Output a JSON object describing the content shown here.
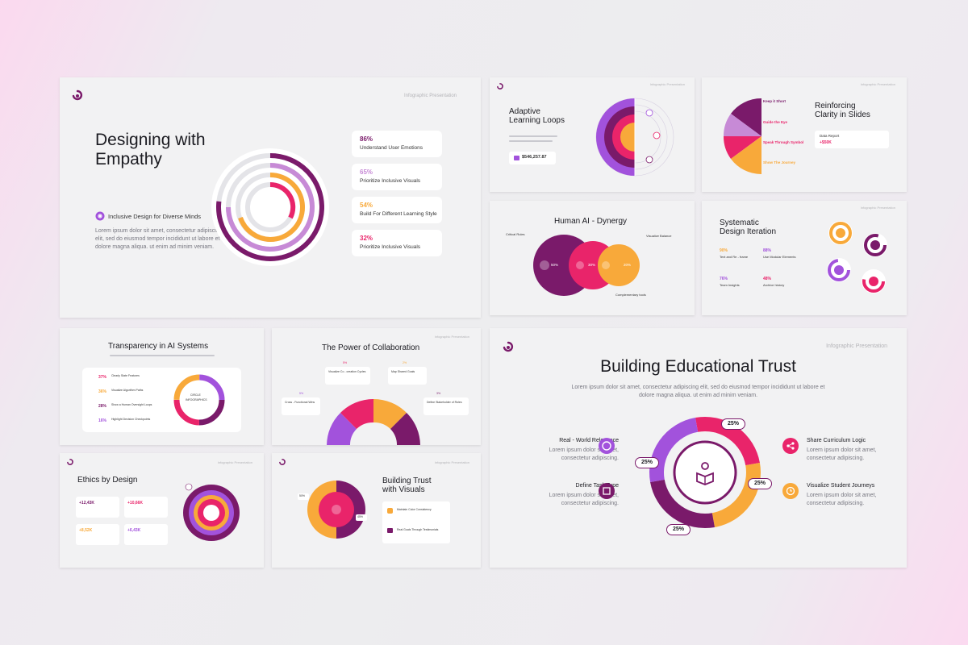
{
  "colors": {
    "purple": "#7a1a6a",
    "violet": "#a252dc",
    "pink": "#e9246a",
    "orange": "#f8a93a",
    "lavender": "#c78ad6"
  },
  "common": {
    "tag": "Infographic Presentation"
  },
  "empathy": {
    "title_l1": "Designing with",
    "title_l2": "Empathy",
    "subtitle": "Inclusive Design for Diverse Minds",
    "body": "Lorem ipsum dolor sit amet, consectetur adipiscing elit, sed do eiusmod tempor incididunt ut labore et dolore magna aliqua. ut enim ad minim veniam.",
    "stats": [
      {
        "pct": "86%",
        "label": "Understand User Emotions"
      },
      {
        "pct": "65%",
        "label": "Prioritize Inclusive Visuals"
      },
      {
        "pct": "54%",
        "label": "Build For Different Learning Style"
      },
      {
        "pct": "32%",
        "label": "Prioritize Inclusive Visuals"
      }
    ]
  },
  "adaptive": {
    "title_l1": "Adaptive",
    "title_l2": "Learning Loops",
    "value": "$546,257.87"
  },
  "reinforcing": {
    "title_l1": "Reinforcing",
    "title_l2": "Clarity in Slides",
    "items": [
      "Keep it Short",
      "Guide the Eye",
      "Speak Through Symbol",
      "Show The Journey"
    ],
    "report_label": "Data Report",
    "report_value": "+$50K"
  },
  "human_ai": {
    "title": "Human AI - Dynergy",
    "pcts": [
      "50%",
      "30%",
      "20%"
    ],
    "labels": [
      "Critical Rules",
      "Visualize Balance",
      "Complementary tools"
    ]
  },
  "systematic": {
    "title_l1": "Systematic",
    "title_l2": "Design Iteration",
    "stats": [
      {
        "pct": "90%",
        "label": "Text and Re - frame"
      },
      {
        "pct": "88%",
        "label": "Use Modular Elements"
      },
      {
        "pct": "76%",
        "label": "Team Insights"
      },
      {
        "pct": "48%",
        "label": "Archive history"
      }
    ]
  },
  "transparency": {
    "title": "Transparency in AI Systems",
    "stats": [
      {
        "pct": "37%",
        "label": "Clearly State Features"
      },
      {
        "pct": "36%",
        "label": "Visualize Algorithm Paths"
      },
      {
        "pct": "28%",
        "label": "Show a Human Oversight Loops"
      },
      {
        "pct": "16%",
        "label": "Highlight Decision Checkpoints"
      }
    ],
    "center_l1": "CIRCLE",
    "center_l2": "INFOGRAPHICS"
  },
  "collab": {
    "title": "The Power of Collaboration",
    "items": [
      {
        "pct": "5%",
        "label": "Visualize Co - creation Cycles"
      },
      {
        "pct": "2%",
        "label": "Map Shared Goals"
      },
      {
        "pct": "5%",
        "label": "Cross - Functional Wins"
      },
      {
        "pct": "3%",
        "label": "Define Stakeholder of Roles"
      }
    ]
  },
  "ethics": {
    "title": "Ethics by Design",
    "stats": [
      "+12,43K",
      "+10,66K",
      "+8,52K",
      "+6,43K"
    ]
  },
  "buildtrust": {
    "title_l1": "Building Trust",
    "title_l2": "with Visuals",
    "items": [
      "Maintain Color Consistency",
      "Real Goals Through Testimonials"
    ],
    "badges": [
      "50%",
      "45%"
    ]
  },
  "educational": {
    "title": "Building Educational Trust",
    "body_l1": "Lorem ipsum dolor sit amet, consectetur adipiscing elit, sed do eiusmod tempor incididunt ut labore et",
    "body_l2": "dolore magna aliqua. ut enim ad minim veniam.",
    "items": [
      {
        "label": "Real - World Relevance",
        "desc_l1": "Lorem ipsum dolor sit amet,",
        "desc_l2": "consectetur adipiscing."
      },
      {
        "label": "Define Task Type",
        "desc_l1": "Lorem ipsum dolor sit amet,",
        "desc_l2": "consectetur adipiscing."
      },
      {
        "label": "Share Curriculum Logic",
        "desc_l1": "Lorem ipsum dolor sit amet,",
        "desc_l2": "consectetur adipiscing."
      },
      {
        "label": "Visualize Student Journeys",
        "desc_l1": "Lorem ipsum dolor sit amet,",
        "desc_l2": "consectetur adipiscing."
      }
    ],
    "badges": [
      "25%",
      "25%",
      "25%",
      "25%"
    ]
  }
}
